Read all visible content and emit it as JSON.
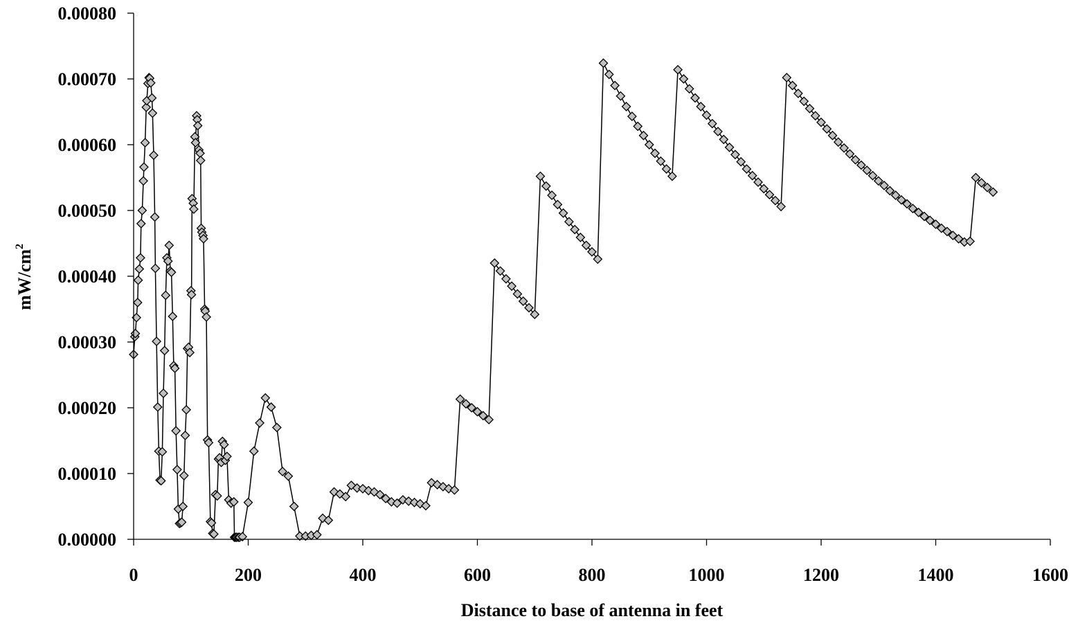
{
  "chart_data": {
    "type": "scatter",
    "title": "",
    "xlabel": "Distance to base of antenna in feet",
    "ylabel": "mW/cm",
    "ylabel_superscript": "2",
    "xlim": [
      0,
      1600
    ],
    "ylim": [
      0,
      0.0008
    ],
    "x_ticks": [
      0,
      200,
      400,
      600,
      800,
      1000,
      1200,
      1400,
      1600
    ],
    "x_tick_labels": [
      "0",
      "200",
      "400",
      "600",
      "800",
      "1000",
      "1200",
      "1400",
      "1600"
    ],
    "y_ticks": [
      0,
      0.0001,
      0.0002,
      0.0003,
      0.0004,
      0.0005,
      0.0006,
      0.0007,
      0.0008
    ],
    "y_tick_labels": [
      "0.00000",
      "0.00010",
      "0.00020",
      "0.00030",
      "0.00040",
      "0.00050",
      "0.00060",
      "0.00070",
      "0.00080"
    ],
    "grid": false,
    "legend": "none",
    "marker": "diamond",
    "colors": {
      "marker_fill": "#c0c0c0",
      "line": "#000000"
    },
    "series": [
      {
        "points": [
          [
            0,
            0.000281
          ],
          [
            2,
            0.000308
          ],
          [
            3,
            0.000313
          ],
          [
            5,
            0.000337
          ],
          [
            7,
            0.00036
          ],
          [
            8,
            0.000394
          ],
          [
            10,
            0.000411
          ],
          [
            12,
            0.000428
          ],
          [
            13,
            0.00048
          ],
          [
            15,
            0.0005
          ],
          [
            17,
            0.000545
          ],
          [
            18,
            0.000566
          ],
          [
            20,
            0.000603
          ],
          [
            22,
            0.000657
          ],
          [
            23,
            0.000667
          ],
          [
            25,
            0.000693
          ],
          [
            27,
            0.000702
          ],
          [
            28,
            0.000701
          ],
          [
            30,
            0.000694
          ],
          [
            32,
            0.000671
          ],
          [
            33,
            0.000648
          ],
          [
            35,
            0.000584
          ],
          [
            37,
            0.00049
          ],
          [
            38,
            0.000412
          ],
          [
            40,
            0.000301
          ],
          [
            42,
            0.000201
          ],
          [
            44,
            0.000134
          ],
          [
            46,
            9e-05
          ],
          [
            48,
            8.9e-05
          ],
          [
            50,
            0.000133
          ],
          [
            52,
            0.000222
          ],
          [
            54,
            0.000287
          ],
          [
            56,
            0.000371
          ],
          [
            58,
            0.000428
          ],
          [
            60,
            0.000423
          ],
          [
            62,
            0.000447
          ],
          [
            64,
            0.000408
          ],
          [
            66,
            0.000406
          ],
          [
            68,
            0.000339
          ],
          [
            70,
            0.000264
          ],
          [
            72,
            0.00026
          ],
          [
            74,
            0.000165
          ],
          [
            76,
            0.000106
          ],
          [
            78,
            4.6e-05
          ],
          [
            80,
            2.4e-05
          ],
          [
            82,
            2.5e-05
          ],
          [
            84,
            2.6e-05
          ],
          [
            86,
            5e-05
          ],
          [
            88,
            9.7e-05
          ],
          [
            90,
            0.000158
          ],
          [
            92,
            0.000197
          ],
          [
            94,
            0.00029
          ],
          [
            96,
            0.000292
          ],
          [
            98,
            0.000284
          ],
          [
            100,
            0.000378
          ],
          [
            101,
            0.000372
          ],
          [
            102,
            0.000518
          ],
          [
            104,
            0.000511
          ],
          [
            105,
            0.000502
          ],
          [
            107,
            0.000612
          ],
          [
            108,
            0.000603
          ],
          [
            110,
            0.000644
          ],
          [
            111,
            0.000638
          ],
          [
            112,
            0.000629
          ],
          [
            114,
            0.000592
          ],
          [
            116,
            0.000587
          ],
          [
            117,
            0.000576
          ],
          [
            118,
            0.000473
          ],
          [
            119,
            0.000467
          ],
          [
            121,
            0.000462
          ],
          [
            122,
            0.000457
          ],
          [
            124,
            0.00035
          ],
          [
            125,
            0.000347
          ],
          [
            127,
            0.000338
          ],
          [
            129,
            0.000151
          ],
          [
            131,
            0.000147
          ],
          [
            134,
            2.7e-05
          ],
          [
            136,
            2.5e-05
          ],
          [
            138,
            9e-06
          ],
          [
            140,
            8e-06
          ],
          [
            143,
            6.8e-05
          ],
          [
            146,
            6.6e-05
          ],
          [
            148,
            0.000122
          ],
          [
            150,
            0.000124
          ],
          [
            153,
            0.000117
          ],
          [
            155,
            0.000149
          ],
          [
            158,
            0.000144
          ],
          [
            160,
            0.00012
          ],
          [
            163,
            0.000126
          ],
          [
            166,
            6e-05
          ],
          [
            170,
            5.5e-05
          ],
          [
            175,
            5.7e-05
          ],
          [
            176,
            3e-06
          ],
          [
            178,
            3e-06
          ],
          [
            180,
            3e-06
          ],
          [
            183,
            3e-06
          ],
          [
            185,
            3e-06
          ],
          [
            190,
            4e-06
          ],
          [
            200,
            5.6e-05
          ],
          [
            210,
            0.000134
          ],
          [
            220,
            0.000177
          ],
          [
            230,
            0.000215
          ],
          [
            240,
            0.000201
          ],
          [
            250,
            0.00017
          ],
          [
            260,
            0.000103
          ],
          [
            270,
            9.6e-05
          ],
          [
            280,
            5e-05
          ],
          [
            290,
            5e-06
          ],
          [
            300,
            5e-06
          ],
          [
            310,
            6e-06
          ],
          [
            320,
            7e-06
          ],
          [
            330,
            3.2e-05
          ],
          [
            340,
            2.9e-05
          ],
          [
            350,
            7.2e-05
          ],
          [
            360,
            6.9e-05
          ],
          [
            370,
            6.5e-05
          ],
          [
            380,
            8.2e-05
          ],
          [
            390,
            7.8e-05
          ],
          [
            400,
            7.7e-05
          ],
          [
            410,
            7.4e-05
          ],
          [
            420,
            7.2e-05
          ],
          [
            430,
            6.8e-05
          ],
          [
            440,
            6.2e-05
          ],
          [
            450,
            5.7e-05
          ],
          [
            460,
            5.5e-05
          ],
          [
            470,
            6e-05
          ],
          [
            480,
            5.8e-05
          ],
          [
            490,
            5.6e-05
          ],
          [
            500,
            5.4e-05
          ],
          [
            510,
            5.1e-05
          ],
          [
            520,
            8.6e-05
          ],
          [
            530,
            8.3e-05
          ],
          [
            540,
            8e-05
          ],
          [
            550,
            7.7e-05
          ],
          [
            560,
            7.5e-05
          ],
          [
            570,
            0.000213
          ],
          [
            580,
            0.000206
          ],
          [
            590,
            0.0002
          ],
          [
            600,
            0.000194
          ],
          [
            610,
            0.000188
          ],
          [
            620,
            0.000182
          ],
          [
            630,
            0.00042
          ],
          [
            640,
            0.000408
          ],
          [
            650,
            0.000396
          ],
          [
            660,
            0.000385
          ],
          [
            670,
            0.000373
          ],
          [
            680,
            0.000362
          ],
          [
            690,
            0.000352
          ],
          [
            700,
            0.000342
          ],
          [
            710,
            0.000552
          ],
          [
            720,
            0.000537
          ],
          [
            730,
            0.000523
          ],
          [
            740,
            0.000509
          ],
          [
            750,
            0.000496
          ],
          [
            760,
            0.000483
          ],
          [
            770,
            0.000471
          ],
          [
            780,
            0.000459
          ],
          [
            790,
            0.000447
          ],
          [
            800,
            0.000437
          ],
          [
            810,
            0.000426
          ],
          [
            820,
            0.000724
          ],
          [
            830,
            0.000707
          ],
          [
            840,
            0.00069
          ],
          [
            850,
            0.000674
          ],
          [
            860,
            0.000658
          ],
          [
            870,
            0.000643
          ],
          [
            880,
            0.000628
          ],
          [
            890,
            0.000614
          ],
          [
            900,
            0.0006
          ],
          [
            910,
            0.000587
          ],
          [
            920,
            0.000575
          ],
          [
            930,
            0.000563
          ],
          [
            940,
            0.000552
          ],
          [
            950,
            0.000714
          ],
          [
            960,
            0.0007
          ],
          [
            970,
            0.000685
          ],
          [
            980,
            0.000671
          ],
          [
            990,
            0.000658
          ],
          [
            1000,
            0.000645
          ],
          [
            1010,
            0.000632
          ],
          [
            1020,
            0.00062
          ],
          [
            1030,
            0.000608
          ],
          [
            1040,
            0.000596
          ],
          [
            1050,
            0.000585
          ],
          [
            1060,
            0.000574
          ],
          [
            1070,
            0.000563
          ],
          [
            1080,
            0.000553
          ],
          [
            1090,
            0.000543
          ],
          [
            1100,
            0.000533
          ],
          [
            1110,
            0.000524
          ],
          [
            1120,
            0.000515
          ],
          [
            1130,
            0.000506
          ],
          [
            1140,
            0.000702
          ],
          [
            1150,
            0.00069
          ],
          [
            1160,
            0.000678
          ],
          [
            1170,
            0.000666
          ],
          [
            1180,
            0.000655
          ],
          [
            1190,
            0.000644
          ],
          [
            1200,
            0.000634
          ],
          [
            1210,
            0.000624
          ],
          [
            1220,
            0.000614
          ],
          [
            1230,
            0.000604
          ],
          [
            1240,
            0.000595
          ],
          [
            1250,
            0.000586
          ],
          [
            1260,
            0.000577
          ],
          [
            1270,
            0.000569
          ],
          [
            1280,
            0.000561
          ],
          [
            1290,
            0.000553
          ],
          [
            1300,
            0.000545
          ],
          [
            1310,
            0.000538
          ],
          [
            1320,
            0.00053
          ],
          [
            1330,
            0.000523
          ],
          [
            1340,
            0.000516
          ],
          [
            1350,
            0.00051
          ],
          [
            1360,
            0.000503
          ],
          [
            1370,
            0.000497
          ],
          [
            1380,
            0.000491
          ],
          [
            1390,
            0.000485
          ],
          [
            1400,
            0.000479
          ],
          [
            1410,
            0.000473
          ],
          [
            1420,
            0.000468
          ],
          [
            1430,
            0.000462
          ],
          [
            1440,
            0.000457
          ],
          [
            1450,
            0.000452
          ],
          [
            1460,
            0.000453
          ],
          [
            1470,
            0.00055
          ],
          [
            1480,
            0.000542
          ],
          [
            1490,
            0.000535
          ],
          [
            1500,
            0.000528
          ]
        ]
      }
    ]
  }
}
